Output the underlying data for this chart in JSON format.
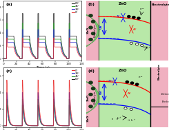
{
  "panel_a_label": "(a)",
  "panel_b_label": "(b)",
  "panel_c_label": "(c)",
  "panel_d_label": "(d)",
  "xlabel": "Time (s)",
  "ylabel_a": "Photocurrent (μA/cm²)",
  "ylabel_c": "Photocurrent (μA/cm²)",
  "legend_labels_a": [
    "0°",
    "30°",
    "45°",
    "60°"
  ],
  "legend_labels_c": [
    "0°",
    "30°",
    "45°",
    "60°"
  ],
  "line_colors_a": [
    "#e83030",
    "#3030d0",
    "#30a030",
    "#202020"
  ],
  "line_colors_c": [
    "#e83030",
    "#3030d0",
    "#30a030",
    "#202020"
  ],
  "bg_green": "#b8e8b0",
  "bg_pink": "#f0b8c8",
  "bg_white_strip": "#e8e8e8",
  "arch_green": "#78c870",
  "arch_pink": "#e8a0b8",
  "ZnO_dot_color": "#205820",
  "time_max": 120,
  "xticks": [
    0,
    20,
    40,
    60,
    80,
    100,
    120
  ]
}
